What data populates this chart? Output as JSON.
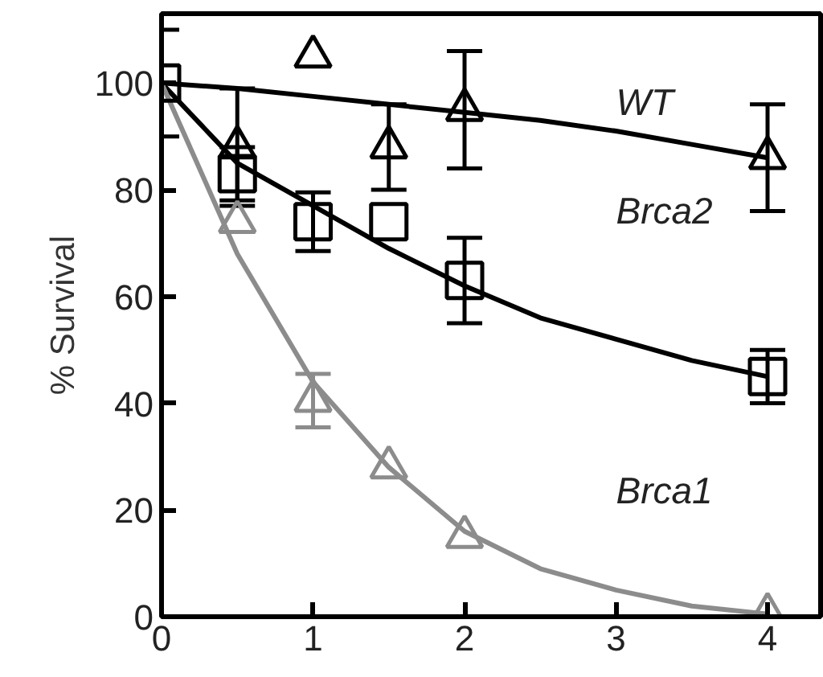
{
  "chart_data": {
    "type": "scatter",
    "ylabel": "% Survival",
    "xlim": [
      0,
      4.35
    ],
    "xticks": [
      0,
      1,
      2,
      3,
      4
    ],
    "ylim": [
      0,
      113
    ],
    "yticks": [
      0,
      20,
      40,
      60,
      80,
      100
    ],
    "grid": false,
    "series": [
      {
        "type": "line",
        "color": "#000000",
        "x": [
          0,
          0.5,
          1,
          1.5,
          2,
          2.5,
          3,
          3.5,
          4
        ],
        "values": [
          100,
          99,
          97.5,
          96,
          94.5,
          93,
          91,
          88.5,
          86
        ]
      },
      {
        "type": "line",
        "color": "#000000",
        "x": [
          0,
          0.5,
          1,
          1.5,
          2,
          2.5,
          3,
          3.5,
          4
        ],
        "values": [
          100,
          85,
          77,
          69,
          62,
          56,
          52,
          48,
          45
        ]
      },
      {
        "type": "line",
        "color": "#8c8c8c",
        "x": [
          0,
          0.5,
          1,
          1.5,
          2,
          2.5,
          3,
          3.5,
          4
        ],
        "values": [
          100,
          68,
          44,
          28,
          16,
          9,
          5,
          2,
          0.5
        ]
      },
      {
        "marker": "triangle",
        "color": "#000000",
        "x": [
          0.5,
          1,
          1.5,
          2,
          4
        ],
        "values": [
          88,
          105,
          88,
          95,
          86
        ],
        "errors": [
          11,
          null,
          8,
          11,
          10
        ]
      },
      {
        "marker": "triangle",
        "color": "#8c8c8c",
        "x": [
          0.5,
          1,
          1.5,
          2,
          4
        ],
        "values": [
          74,
          40.5,
          28,
          15,
          0.5
        ],
        "errors": [
          null,
          5,
          null,
          null,
          null
        ]
      },
      {
        "marker": "square",
        "color": "#000000",
        "x": [
          0,
          0.5,
          1,
          1.5,
          2,
          4
        ],
        "values": [
          100,
          83,
          74,
          74,
          63,
          45
        ],
        "errors": [
          10,
          5,
          5.5,
          null,
          8,
          5
        ]
      }
    ],
    "annotations": [
      "WT",
      "Brca2",
      "Brca1"
    ]
  }
}
